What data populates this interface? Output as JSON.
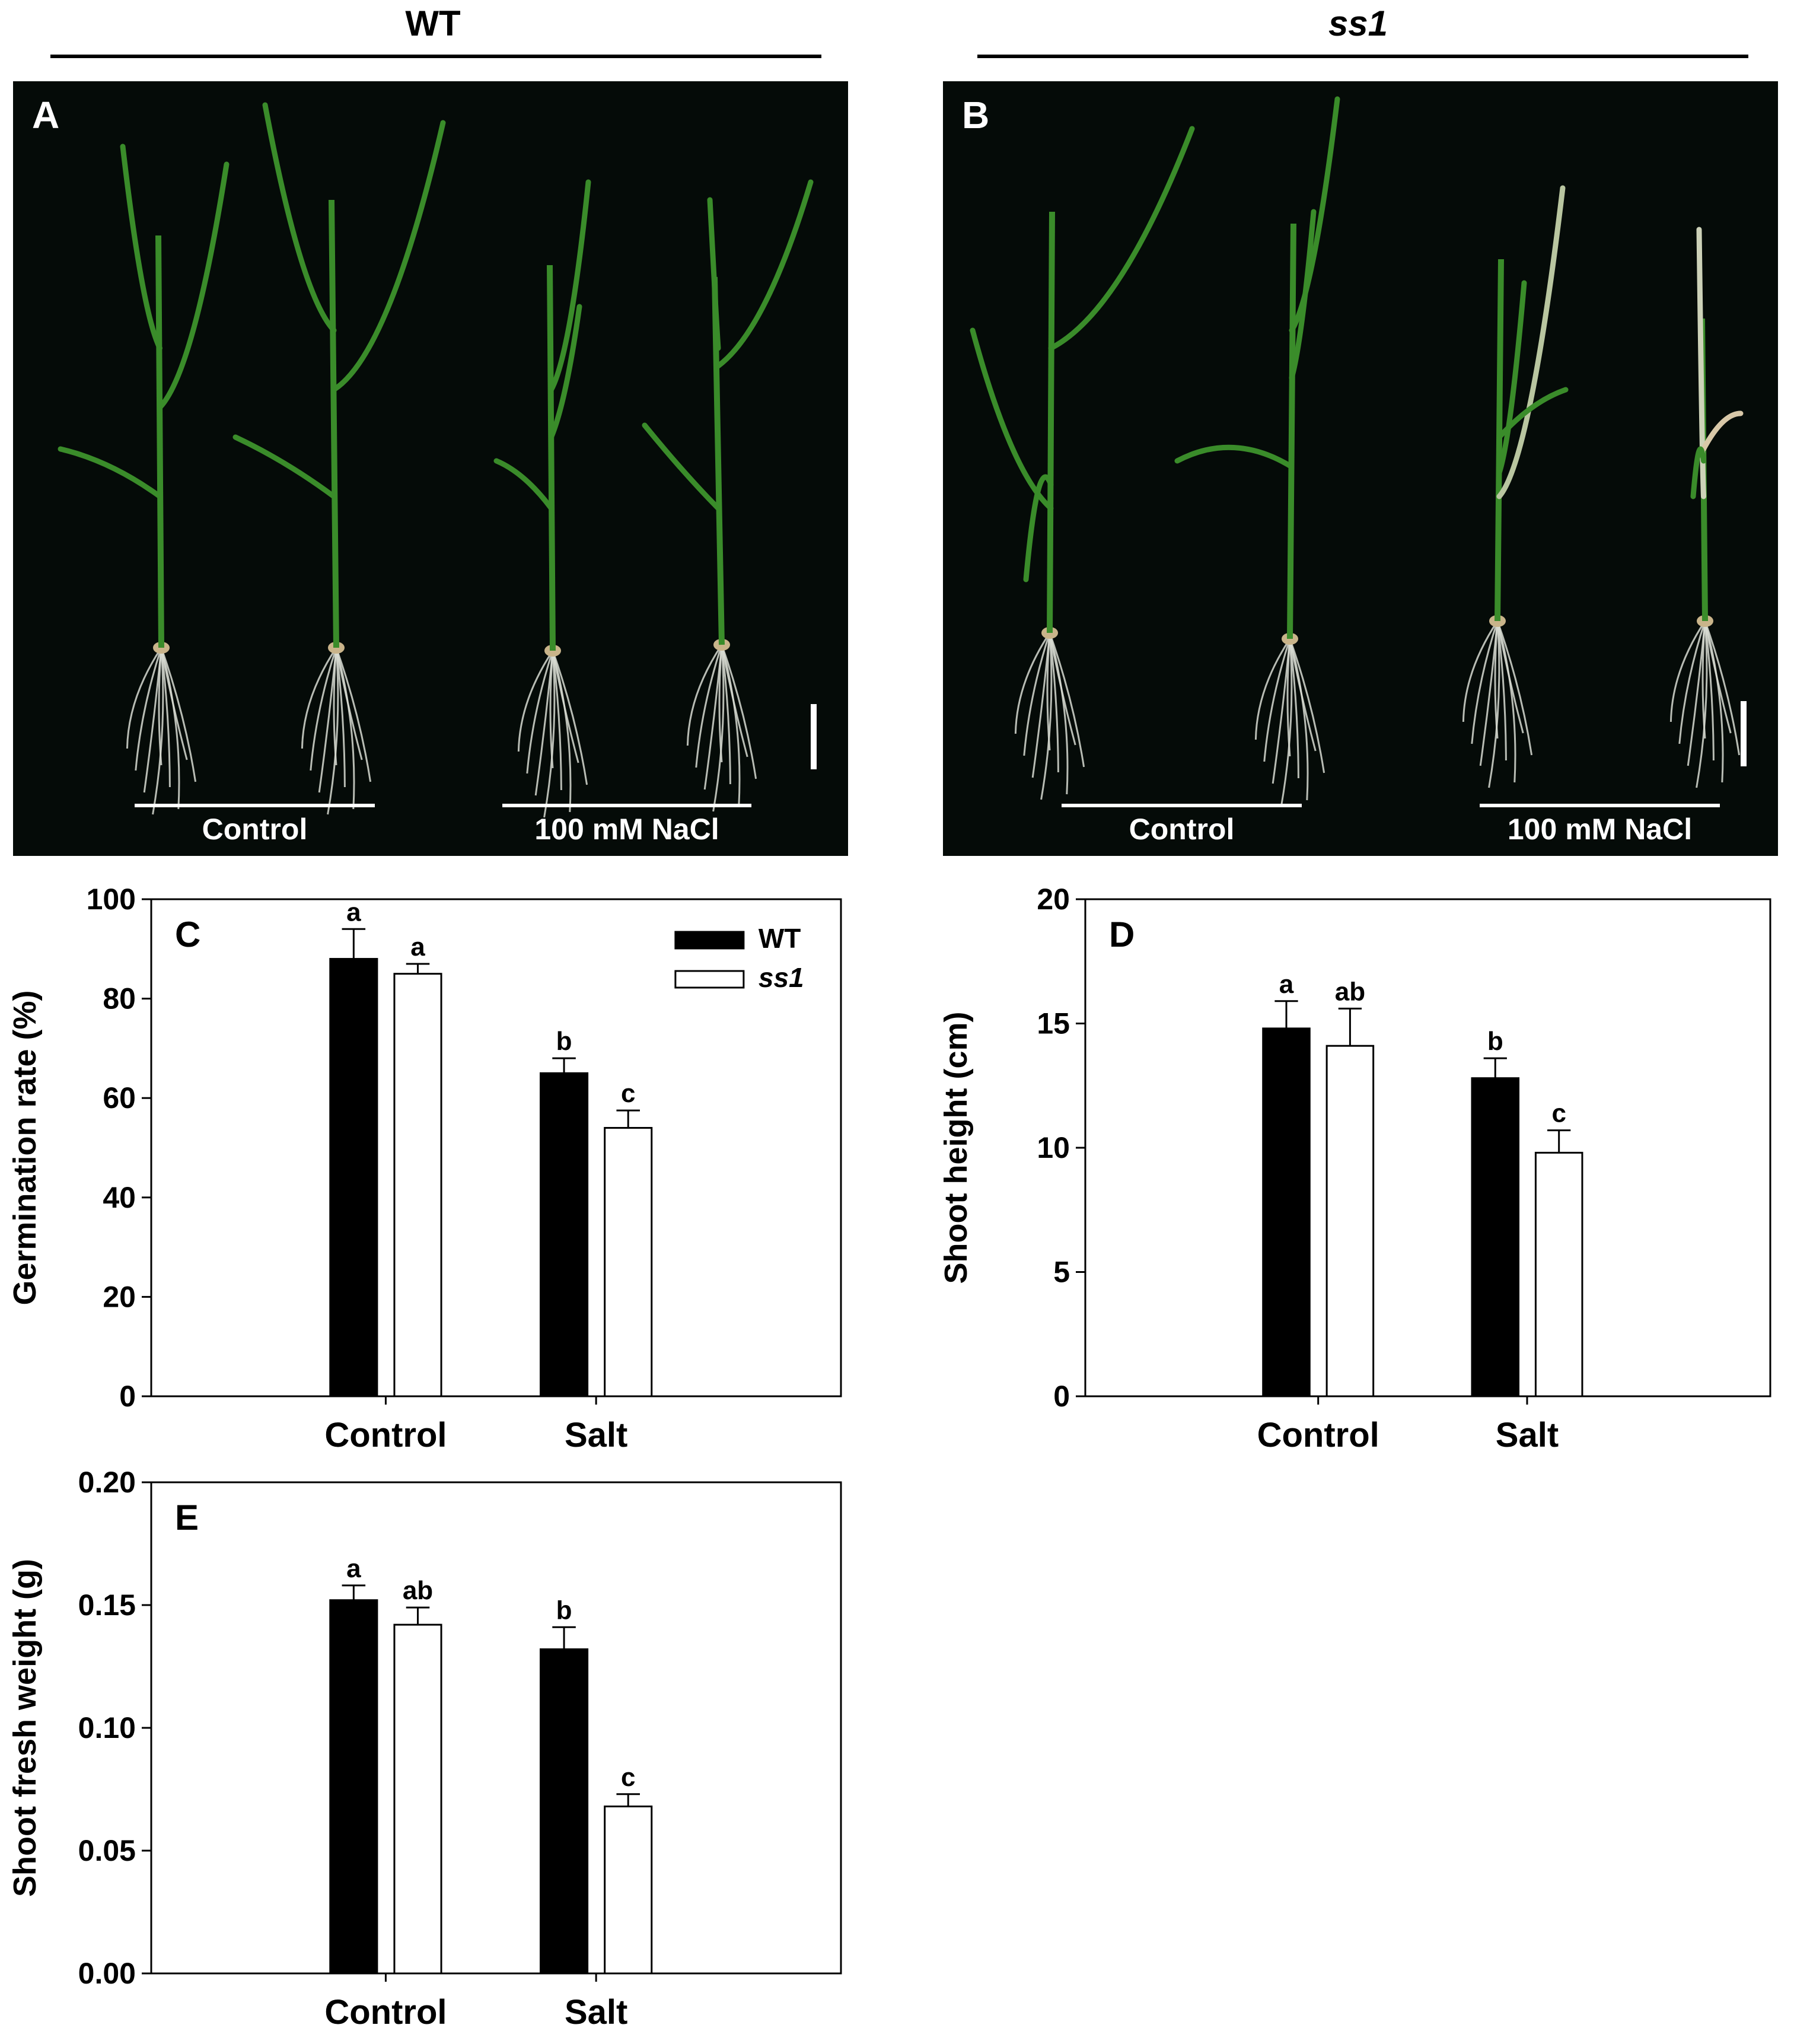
{
  "header": {
    "left_title": "WT",
    "right_title": "ss1"
  },
  "photos": [
    {
      "letter": "A",
      "left_group": "Control",
      "right_group": "100 mM NaCl"
    },
    {
      "letter": "B",
      "left_group": "Control",
      "right_group": "100 mM NaCl"
    }
  ],
  "colors": {
    "wt_bar": "#000000",
    "ss1_bar": "#ffffff",
    "photo_background": "#050b08",
    "leaf_green": "#3a8c2a"
  },
  "chart_data": [
    {
      "type": "bar",
      "panel": "C",
      "ylabel": "Germination rate (%)",
      "ylim": [
        0,
        100
      ],
      "yticks": [
        "0",
        "20",
        "40",
        "60",
        "80",
        "100"
      ],
      "categories": [
        "Control",
        "Salt"
      ],
      "legend": {
        "placement": "top-right",
        "entries": [
          "WT",
          "ss1"
        ]
      },
      "series": [
        {
          "name": "WT",
          "values": [
            88,
            65
          ],
          "errors": [
            6,
            3
          ],
          "sig": [
            "a",
            "b"
          ]
        },
        {
          "name": "ss1",
          "values": [
            85,
            54
          ],
          "errors": [
            2,
            3.5
          ],
          "sig": [
            "a",
            "c"
          ]
        }
      ]
    },
    {
      "type": "bar",
      "panel": "D",
      "ylabel": "Shoot height (cm)",
      "ylim": [
        0,
        20
      ],
      "yticks": [
        "0",
        "5",
        "10",
        "15",
        "20"
      ],
      "categories": [
        "Control",
        "Salt"
      ],
      "series": [
        {
          "name": "WT",
          "values": [
            14.8,
            12.8
          ],
          "errors": [
            1.1,
            0.8
          ],
          "sig": [
            "a",
            "b"
          ]
        },
        {
          "name": "ss1",
          "values": [
            14.1,
            9.8
          ],
          "errors": [
            1.5,
            0.9
          ],
          "sig": [
            "ab",
            "c"
          ]
        }
      ]
    },
    {
      "type": "bar",
      "panel": "E",
      "ylabel": "Shoot fresh weight (g)",
      "ylim": [
        0,
        0.2
      ],
      "yticks": [
        "0.00",
        "0.05",
        "0.10",
        "0.15",
        "0.20"
      ],
      "categories": [
        "Control",
        "Salt"
      ],
      "series": [
        {
          "name": "WT",
          "values": [
            0.152,
            0.132
          ],
          "errors": [
            0.006,
            0.009
          ],
          "sig": [
            "a",
            "b"
          ]
        },
        {
          "name": "ss1",
          "values": [
            0.142,
            0.068
          ],
          "errors": [
            0.007,
            0.005
          ],
          "sig": [
            "ab",
            "c"
          ]
        }
      ]
    }
  ]
}
